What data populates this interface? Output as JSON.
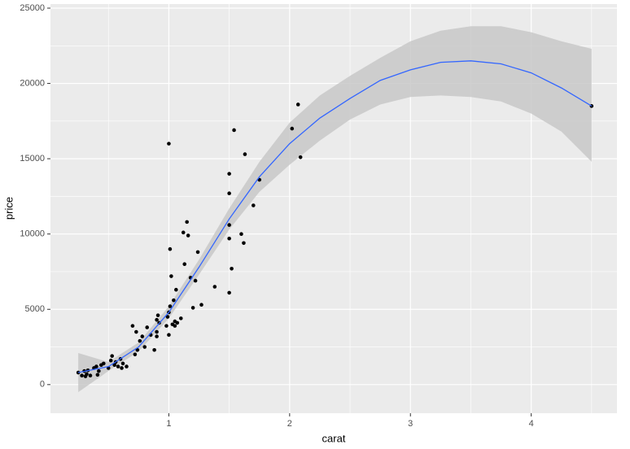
{
  "chart_data": {
    "type": "scatter",
    "x_label": "carat",
    "y_label": "price",
    "x": [
      0.25,
      0.28,
      0.3,
      0.31,
      0.32,
      0.33,
      0.35,
      0.38,
      0.4,
      0.41,
      0.42,
      0.44,
      0.46,
      0.5,
      0.52,
      0.53,
      0.55,
      0.56,
      0.58,
      0.6,
      0.61,
      0.62,
      0.65,
      0.7,
      0.72,
      0.73,
      0.74,
      0.76,
      0.78,
      0.8,
      0.82,
      0.85,
      0.88,
      0.9,
      0.9,
      0.9,
      0.91,
      0.92,
      0.98,
      0.99,
      1.0,
      1.0,
      1.0,
      1.01,
      1.01,
      1.02,
      1.03,
      1.04,
      1.05,
      1.05,
      1.06,
      1.07,
      1.1,
      1.12,
      1.13,
      1.15,
      1.16,
      1.18,
      1.2,
      1.22,
      1.24,
      1.27,
      1.38,
      1.5,
      1.5,
      1.5,
      1.5,
      1.5,
      1.52,
      1.54,
      1.6,
      1.62,
      1.63,
      1.7,
      1.75,
      2.02,
      2.07,
      2.09,
      4.5
    ],
    "values": [
      800,
      600,
      900,
      550,
      700,
      950,
      600,
      1100,
      1200,
      650,
      900,
      1300,
      1400,
      1100,
      1600,
      1900,
      1300,
      1500,
      1200,
      1700,
      1100,
      1400,
      1200,
      3900,
      2000,
      3500,
      2300,
      2900,
      3200,
      2500,
      3800,
      3300,
      2300,
      3200,
      3500,
      4300,
      4600,
      4100,
      3900,
      4500,
      16000,
      3300,
      4800,
      9000,
      5200,
      7200,
      4000,
      5600,
      4200,
      3900,
      6300,
      4100,
      4400,
      10100,
      8000,
      10800,
      9900,
      7100,
      5100,
      6900,
      8800,
      5300,
      6500,
      14000,
      12700,
      10600,
      9700,
      6100,
      7700,
      16900,
      10000,
      9400,
      15300,
      11900,
      13600,
      17000,
      18600,
      15100,
      18500
    ],
    "point_color": "#000000",
    "smooth": {
      "color": "#3366ff",
      "band_color": "#c8c8c8",
      "x": [
        0.25,
        0.5,
        0.75,
        1.0,
        1.25,
        1.5,
        1.75,
        2.0,
        2.25,
        2.5,
        2.75,
        3.0,
        3.25,
        3.5,
        3.75,
        4.0,
        4.25,
        4.5
      ],
      "values": [
        800,
        1200,
        2500,
        4800,
        7800,
        11000,
        13800,
        16000,
        17700,
        19000,
        20200,
        20900,
        21400,
        21500,
        21300,
        20700,
        19700,
        18500
      ],
      "lower": [
        -500,
        900,
        2200,
        4400,
        7300,
        10300,
        12800,
        14600,
        16200,
        17600,
        18600,
        19100,
        19200,
        19100,
        18800,
        18000,
        16800,
        14800
      ],
      "upper": [
        2100,
        1500,
        2800,
        5200,
        8300,
        11700,
        14800,
        17400,
        19200,
        20500,
        21700,
        22800,
        23500,
        23800,
        23800,
        23400,
        22800,
        22300
      ]
    },
    "xlim": [
      0.02,
      4.71
    ],
    "ylim": [
      -1900,
      25270
    ],
    "xticks": [
      1,
      2,
      3,
      4
    ],
    "yticks": [
      0,
      5000,
      10000,
      15000,
      20000,
      25000
    ],
    "x_minor_ticks": [
      0.5,
      1.5,
      2.5,
      3.5,
      4.5
    ],
    "y_minor_ticks": [
      2500,
      7500,
      12500,
      17500,
      22500
    ],
    "grid": true
  }
}
